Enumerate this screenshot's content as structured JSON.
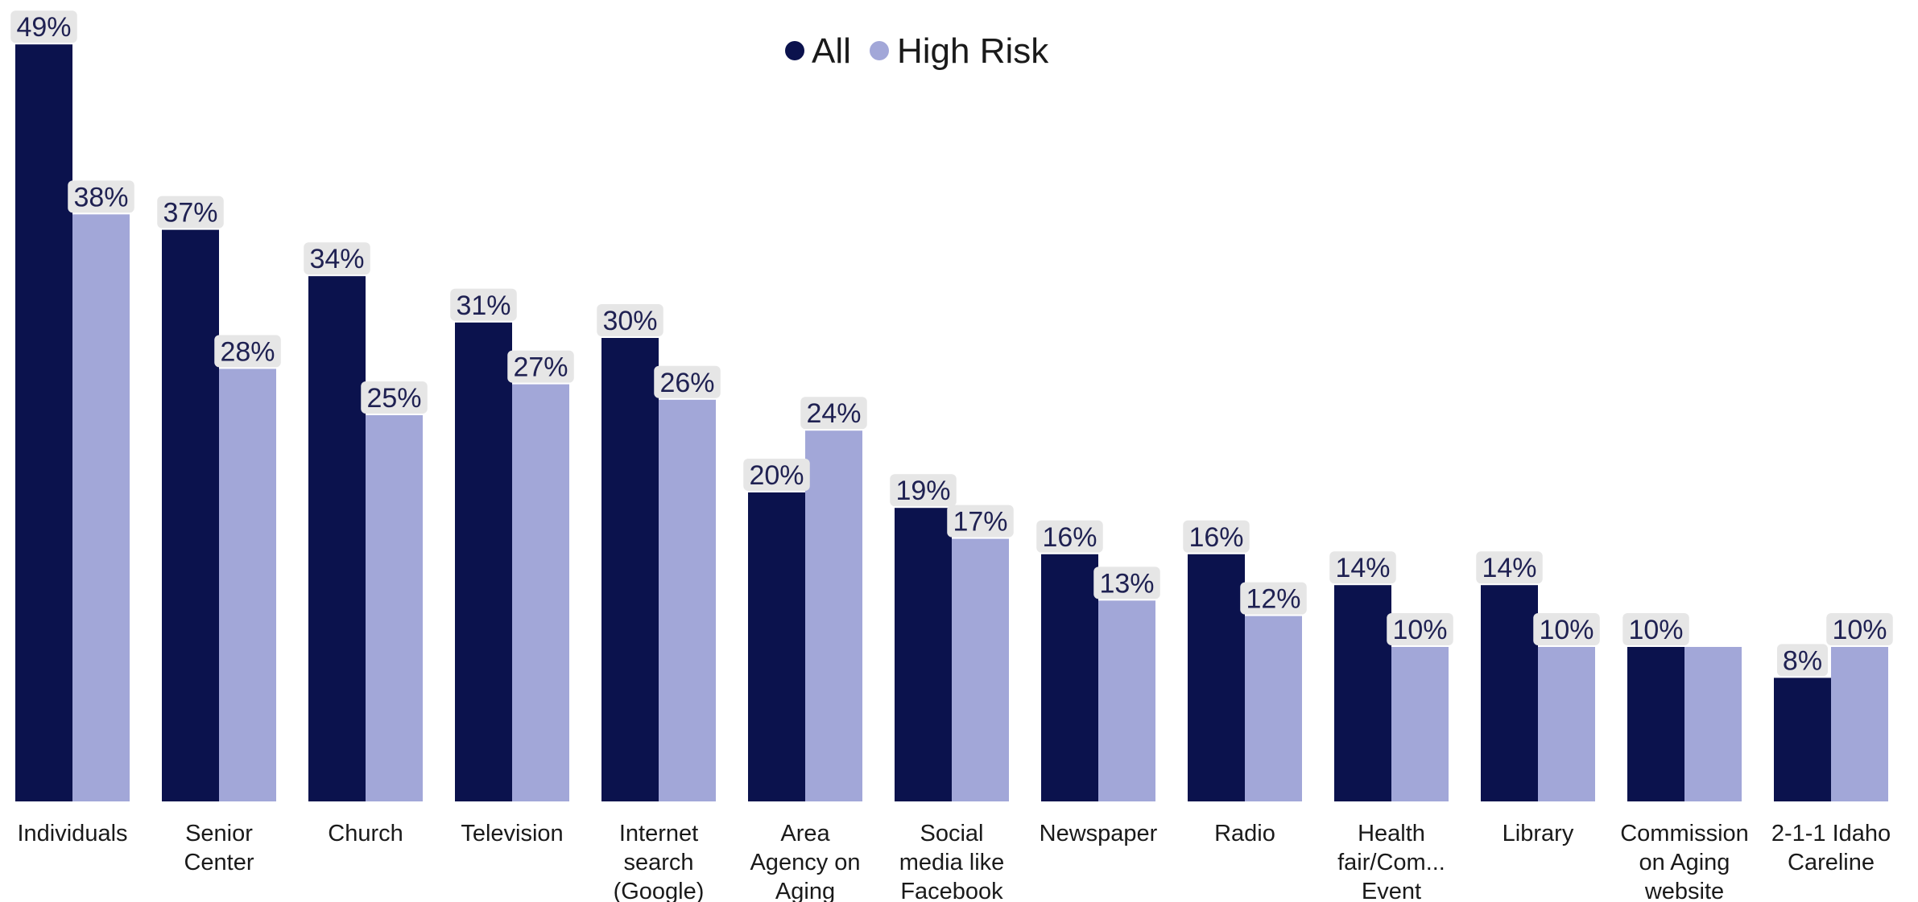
{
  "chart_data": {
    "type": "bar",
    "title": "",
    "xlabel": "",
    "ylabel": "",
    "ylim": [
      0,
      50
    ],
    "grid": false,
    "legend_position": "top-center",
    "categories": [
      [
        "Individuals"
      ],
      [
        "Senior",
        "Center"
      ],
      [
        "Church"
      ],
      [
        "Television"
      ],
      [
        "Internet",
        "search",
        "(Google)"
      ],
      [
        "Area",
        "Agency on",
        "Aging"
      ],
      [
        "Social",
        "media like",
        "Facebook"
      ],
      [
        "Newspaper"
      ],
      [
        "Radio"
      ],
      [
        "Health",
        "fair/Com...",
        "Event"
      ],
      [
        "Library"
      ],
      [
        "Commission",
        "on Aging",
        "website"
      ],
      [
        "2-1-1 Idaho",
        "Careline"
      ]
    ],
    "series": [
      {
        "name": "All",
        "color": "#0b124d",
        "values": [
          49,
          37,
          34,
          31,
          30,
          20,
          19,
          16,
          16,
          14,
          14,
          10,
          8
        ],
        "labels": [
          "49%",
          "37%",
          "34%",
          "31%",
          "30%",
          "20%",
          "19%",
          "16%",
          "16%",
          "14%",
          "14%",
          "10%",
          "8%"
        ]
      },
      {
        "name": "High Risk",
        "color": "#a2a7d8",
        "values": [
          38,
          28,
          25,
          27,
          26,
          24,
          17,
          13,
          12,
          10,
          10,
          10,
          10
        ],
        "labels": [
          "38%",
          "28%",
          "25%",
          "27%",
          "26%",
          "24%",
          "17%",
          "13%",
          "12%",
          "10%",
          "10%",
          "",
          "10%"
        ]
      }
    ],
    "label_background": "#e6e6e6",
    "label_color": "#1f2152"
  }
}
